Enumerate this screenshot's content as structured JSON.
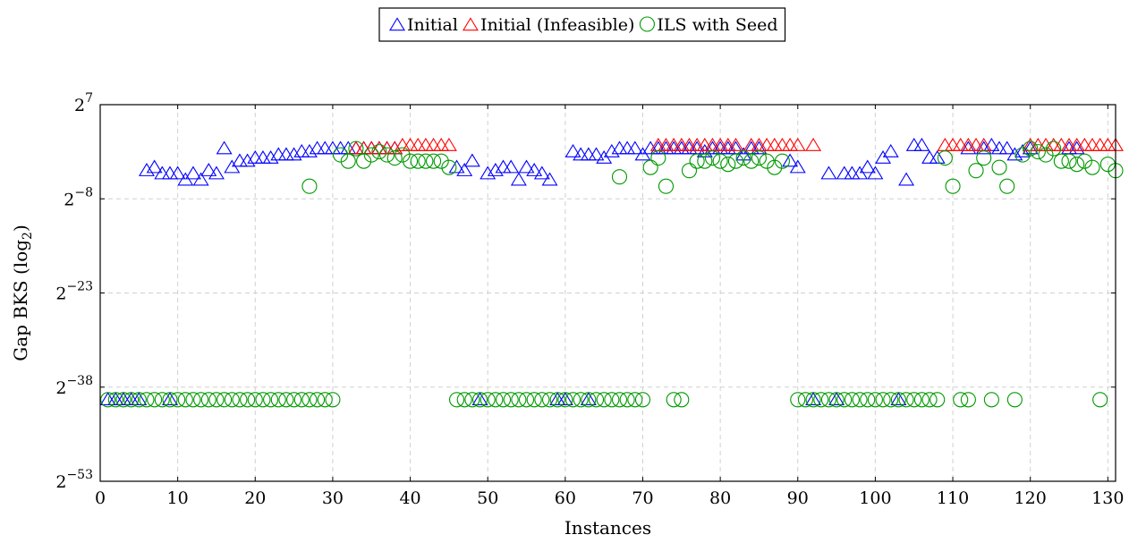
{
  "chart_data": {
    "type": "scatter",
    "xlabel": "Instances",
    "ylabel": "Gap BKS (log",
    "ylabel_sub": "2",
    "ylabel_close": ")",
    "xlim": [
      0,
      131
    ],
    "ylim_log2": [
      -53,
      7
    ],
    "x_ticks": [
      0,
      10,
      20,
      30,
      40,
      50,
      60,
      70,
      80,
      90,
      100,
      110,
      120,
      130
    ],
    "y_ticks": [
      {
        "exp": 7,
        "base": "2",
        "sup": "7"
      },
      {
        "exp": -8,
        "base": "2",
        "sup": "−8"
      },
      {
        "exp": -23,
        "base": "2",
        "sup": "−23"
      },
      {
        "exp": -38,
        "base": "2",
        "sup": "−38"
      },
      {
        "exp": -53,
        "base": "2",
        "sup": "−53"
      }
    ],
    "grid": true,
    "legend_position": "top-center",
    "series": [
      {
        "name": "Initial",
        "marker": "triangle",
        "color": "#0000ff",
        "points": [
          [
            1,
            -40
          ],
          [
            2,
            -40
          ],
          [
            3,
            -40
          ],
          [
            4,
            -40
          ],
          [
            5,
            -40
          ],
          [
            6,
            -3.5
          ],
          [
            7,
            -3
          ],
          [
            8,
            -4
          ],
          [
            9,
            -40
          ],
          [
            9,
            -4
          ],
          [
            10,
            -4
          ],
          [
            11,
            -5
          ],
          [
            12,
            -4
          ],
          [
            13,
            -5
          ],
          [
            14,
            -3.5
          ],
          [
            15,
            -4
          ],
          [
            16,
            0
          ],
          [
            17,
            -3
          ],
          [
            18,
            -2
          ],
          [
            19,
            -2
          ],
          [
            20,
            -1.5
          ],
          [
            21,
            -1.5
          ],
          [
            22,
            -1.5
          ],
          [
            23,
            -1
          ],
          [
            24,
            -1
          ],
          [
            25,
            -1
          ],
          [
            26,
            -0.5
          ],
          [
            27,
            -0.5
          ],
          [
            28,
            0
          ],
          [
            29,
            0
          ],
          [
            30,
            0
          ],
          [
            31,
            0
          ],
          [
            32,
            0
          ],
          [
            33,
            0
          ],
          [
            34,
            0
          ],
          [
            35,
            0
          ],
          [
            36,
            0
          ],
          [
            37,
            0
          ],
          [
            38,
            0
          ],
          [
            46,
            -3
          ],
          [
            47,
            -3.5
          ],
          [
            48,
            -2
          ],
          [
            49,
            -40
          ],
          [
            50,
            -4
          ],
          [
            51,
            -3.5
          ],
          [
            52,
            -3
          ],
          [
            53,
            -3
          ],
          [
            54,
            -5
          ],
          [
            55,
            -3
          ],
          [
            56,
            -3.5
          ],
          [
            57,
            -4
          ],
          [
            58,
            -5
          ],
          [
            59,
            -40
          ],
          [
            60,
            -40
          ],
          [
            61,
            -0.5
          ],
          [
            62,
            -1
          ],
          [
            63,
            -40
          ],
          [
            63,
            -1
          ],
          [
            64,
            -1
          ],
          [
            65,
            -1.5
          ],
          [
            66,
            -0.5
          ],
          [
            67,
            0
          ],
          [
            68,
            0
          ],
          [
            69,
            0
          ],
          [
            70,
            -1
          ],
          [
            71,
            0
          ],
          [
            72,
            0
          ],
          [
            73,
            0
          ],
          [
            74,
            0
          ],
          [
            75,
            0
          ],
          [
            76,
            0
          ],
          [
            77,
            0
          ],
          [
            78,
            -0.5
          ],
          [
            79,
            0
          ],
          [
            80,
            0
          ],
          [
            81,
            0
          ],
          [
            82,
            0
          ],
          [
            83,
            -1
          ],
          [
            84,
            0
          ],
          [
            85,
            0
          ],
          [
            89,
            -2
          ],
          [
            90,
            -3
          ],
          [
            92,
            -40
          ],
          [
            94,
            -4
          ],
          [
            95,
            -40
          ],
          [
            96,
            -4
          ],
          [
            97,
            -4
          ],
          [
            98,
            -4
          ],
          [
            99,
            -3
          ],
          [
            100,
            -4
          ],
          [
            101,
            -1.5
          ],
          [
            102,
            -0.5
          ],
          [
            103,
            -40
          ],
          [
            104,
            -5
          ],
          [
            105,
            0.5
          ],
          [
            106,
            0.5
          ],
          [
            107,
            -1.5
          ],
          [
            108,
            -1.5
          ],
          [
            112,
            0
          ],
          [
            114,
            0
          ],
          [
            115,
            0.5
          ],
          [
            116,
            0
          ],
          [
            117,
            0
          ],
          [
            118,
            -1
          ],
          [
            119,
            -0.5
          ],
          [
            120,
            0
          ],
          [
            125,
            0
          ],
          [
            126,
            0
          ]
        ]
      },
      {
        "name": "Initial (Infeasible)",
        "marker": "triangle",
        "color": "#ff0000",
        "points": [
          [
            33,
            0
          ],
          [
            34,
            0
          ],
          [
            35,
            0
          ],
          [
            36,
            0
          ],
          [
            37,
            0
          ],
          [
            38,
            0
          ],
          [
            39,
            0.5
          ],
          [
            40,
            0.5
          ],
          [
            41,
            0.5
          ],
          [
            42,
            0.5
          ],
          [
            43,
            0.5
          ],
          [
            44,
            0.5
          ],
          [
            45,
            0.5
          ],
          [
            72,
            0.5
          ],
          [
            73,
            0.5
          ],
          [
            74,
            0.5
          ],
          [
            75,
            0.5
          ],
          [
            76,
            0.5
          ],
          [
            77,
            0.5
          ],
          [
            78,
            0.5
          ],
          [
            79,
            0.5
          ],
          [
            80,
            0.5
          ],
          [
            81,
            0.5
          ],
          [
            82,
            0.5
          ],
          [
            84,
            0.5
          ],
          [
            85,
            0.5
          ],
          [
            86,
            0.5
          ],
          [
            87,
            0.5
          ],
          [
            88,
            0.5
          ],
          [
            89,
            0.5
          ],
          [
            90,
            0.5
          ],
          [
            92,
            0.5
          ],
          [
            109,
            0.5
          ],
          [
            110,
            0.5
          ],
          [
            111,
            0.5
          ],
          [
            112,
            0.5
          ],
          [
            113,
            0.5
          ],
          [
            114,
            0.5
          ],
          [
            120,
            0.5
          ],
          [
            121,
            0.5
          ],
          [
            122,
            0.5
          ],
          [
            123,
            0.5
          ],
          [
            124,
            0.5
          ],
          [
            125,
            0.5
          ],
          [
            126,
            0.5
          ],
          [
            127,
            0.5
          ],
          [
            128,
            0.5
          ],
          [
            129,
            0.5
          ],
          [
            130,
            0.5
          ],
          [
            131,
            0.5
          ]
        ]
      },
      {
        "name": "ILS with Seed",
        "marker": "circle",
        "color": "#009900",
        "points": [
          [
            1,
            -40
          ],
          [
            2,
            -40
          ],
          [
            3,
            -40
          ],
          [
            4,
            -40
          ],
          [
            5,
            -40
          ],
          [
            6,
            -40
          ],
          [
            7,
            -40
          ],
          [
            8,
            -40
          ],
          [
            9,
            -40
          ],
          [
            10,
            -40
          ],
          [
            11,
            -40
          ],
          [
            12,
            -40
          ],
          [
            13,
            -40
          ],
          [
            14,
            -40
          ],
          [
            15,
            -40
          ],
          [
            16,
            -40
          ],
          [
            17,
            -40
          ],
          [
            18,
            -40
          ],
          [
            19,
            -40
          ],
          [
            20,
            -40
          ],
          [
            21,
            -40
          ],
          [
            22,
            -40
          ],
          [
            23,
            -40
          ],
          [
            24,
            -40
          ],
          [
            25,
            -40
          ],
          [
            26,
            -40
          ],
          [
            27,
            -40
          ],
          [
            27,
            -6
          ],
          [
            28,
            -40
          ],
          [
            29,
            -40
          ],
          [
            30,
            -40
          ],
          [
            31,
            -1
          ],
          [
            32,
            -2
          ],
          [
            33,
            0
          ],
          [
            34,
            -2
          ],
          [
            35,
            -1
          ],
          [
            36,
            -0.5
          ],
          [
            37,
            -1
          ],
          [
            38,
            -1.5
          ],
          [
            39,
            -1
          ],
          [
            40,
            -2
          ],
          [
            41,
            -2
          ],
          [
            42,
            -2
          ],
          [
            43,
            -2
          ],
          [
            44,
            -2
          ],
          [
            45,
            -3
          ],
          [
            46,
            -40
          ],
          [
            47,
            -40
          ],
          [
            48,
            -40
          ],
          [
            49,
            -40
          ],
          [
            50,
            -40
          ],
          [
            51,
            -40
          ],
          [
            52,
            -40
          ],
          [
            53,
            -40
          ],
          [
            54,
            -40
          ],
          [
            55,
            -40
          ],
          [
            56,
            -40
          ],
          [
            57,
            -40
          ],
          [
            58,
            -40
          ],
          [
            59,
            -40
          ],
          [
            60,
            -40
          ],
          [
            61,
            -40
          ],
          [
            62,
            -40
          ],
          [
            63,
            -40
          ],
          [
            64,
            -40
          ],
          [
            65,
            -40
          ],
          [
            66,
            -40
          ],
          [
            67,
            -40
          ],
          [
            67,
            -4.5
          ],
          [
            68,
            -40
          ],
          [
            69,
            -40
          ],
          [
            70,
            -40
          ],
          [
            71,
            -3
          ],
          [
            72,
            -1.5
          ],
          [
            73,
            -6
          ],
          [
            74,
            -40
          ],
          [
            75,
            -40
          ],
          [
            76,
            -3.5
          ],
          [
            77,
            -2
          ],
          [
            78,
            -2
          ],
          [
            79,
            -1.5
          ],
          [
            80,
            -2
          ],
          [
            81,
            -2.5
          ],
          [
            82,
            -2
          ],
          [
            83,
            -1.5
          ],
          [
            84,
            -2
          ],
          [
            85,
            -1.5
          ],
          [
            86,
            -2
          ],
          [
            87,
            -3
          ],
          [
            88,
            -2
          ],
          [
            90,
            -40
          ],
          [
            91,
            -40
          ],
          [
            92,
            -40
          ],
          [
            93,
            -40
          ],
          [
            94,
            -40
          ],
          [
            95,
            -40
          ],
          [
            96,
            -40
          ],
          [
            97,
            -40
          ],
          [
            98,
            -40
          ],
          [
            99,
            -40
          ],
          [
            100,
            -40
          ],
          [
            101,
            -40
          ],
          [
            102,
            -40
          ],
          [
            103,
            -40
          ],
          [
            104,
            -40
          ],
          [
            105,
            -40
          ],
          [
            106,
            -40
          ],
          [
            107,
            -40
          ],
          [
            108,
            -40
          ],
          [
            109,
            -1.5
          ],
          [
            110,
            -6
          ],
          [
            111,
            -40
          ],
          [
            112,
            -40
          ],
          [
            113,
            -3.5
          ],
          [
            114,
            -1.5
          ],
          [
            115,
            -40
          ],
          [
            116,
            -3
          ],
          [
            117,
            -6
          ],
          [
            118,
            -40
          ],
          [
            119,
            -1
          ],
          [
            120,
            0
          ],
          [
            121,
            -0.5
          ],
          [
            122,
            -1
          ],
          [
            123,
            0
          ],
          [
            124,
            -2
          ],
          [
            125,
            -2
          ],
          [
            126,
            -2.5
          ],
          [
            127,
            -2
          ],
          [
            128,
            -3
          ],
          [
            129,
            -40
          ],
          [
            130,
            -2.5
          ],
          [
            131,
            -3.5
          ]
        ]
      }
    ]
  }
}
